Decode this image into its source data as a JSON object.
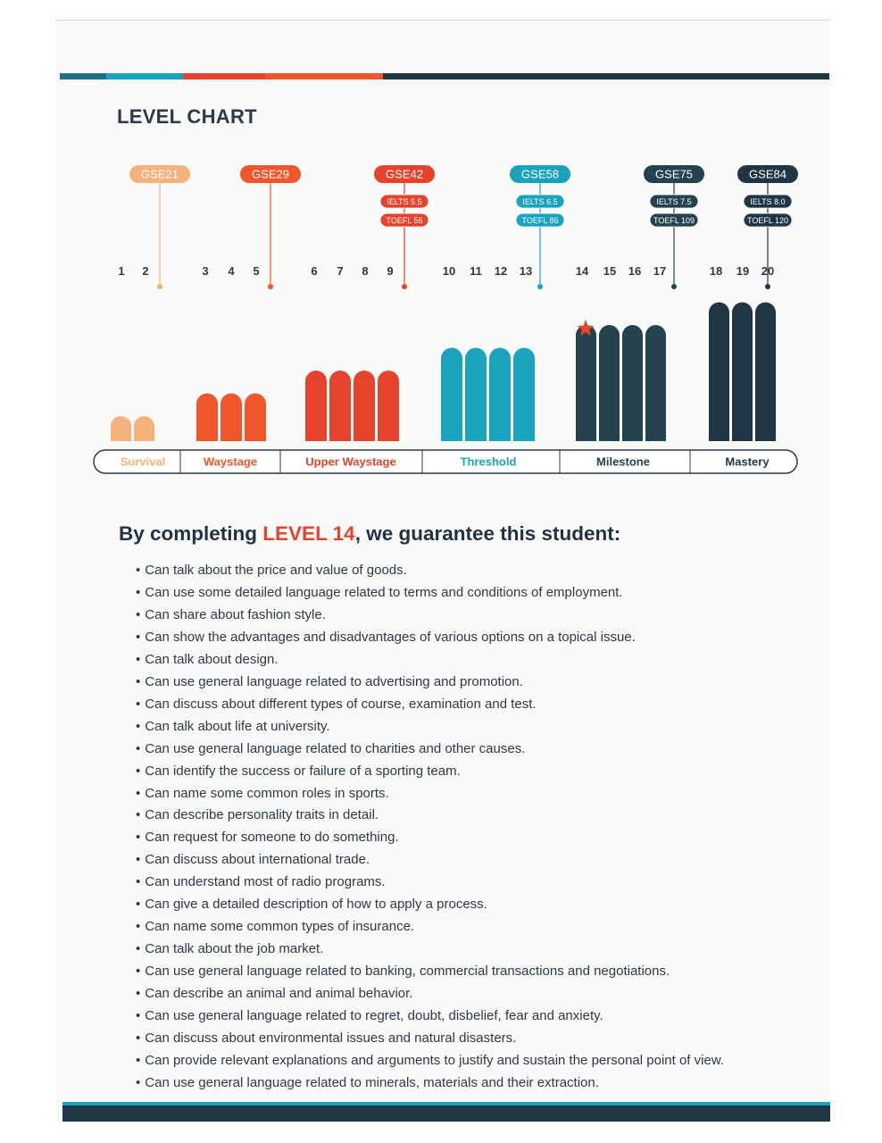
{
  "page_title": "LEVEL CHART",
  "colors": {
    "survival": "#f6b27d",
    "waystage": "#f0562c",
    "upper_waystage": "#e5432c",
    "threshold": "#1aa3bd",
    "milestone": "#25434f",
    "mastery": "#1f3745",
    "star": "#e5432c"
  },
  "chart_data": {
    "type": "bar",
    "levels": [
      "1",
      "2",
      "3",
      "4",
      "5",
      "6",
      "7",
      "8",
      "9",
      "10",
      "11",
      "12",
      "13",
      "14",
      "15",
      "16",
      "17",
      "18",
      "19",
      "20"
    ],
    "gse_markers": [
      {
        "label": "GSE21",
        "level": 2,
        "group": "survival",
        "tests": []
      },
      {
        "label": "GSE29",
        "level": 5,
        "group": "waystage",
        "tests": []
      },
      {
        "label": "GSE42",
        "level": 9,
        "group": "upper_waystage",
        "tests": [
          "IELTS 5.5",
          "TOEFL 56"
        ]
      },
      {
        "label": "GSE58",
        "level": 13,
        "group": "threshold",
        "tests": [
          "IELTS 6.5",
          "TOEFL 86"
        ]
      },
      {
        "label": "GSE75",
        "level": 17,
        "group": "milestone",
        "tests": [
          "IELTS 7.5",
          "TOEFL 109"
        ]
      },
      {
        "label": "GSE84",
        "level": 20,
        "group": "mastery",
        "tests": [
          "IELTS 8.0",
          "TOEFL 120"
        ]
      }
    ],
    "stages": [
      {
        "name": "Survival",
        "key": "survival",
        "bars": 2,
        "height": 1
      },
      {
        "name": "Waystage",
        "key": "waystage",
        "bars": 3,
        "height": 2
      },
      {
        "name": "Upper Waystage",
        "key": "upper_waystage",
        "bars": 4,
        "height": 3
      },
      {
        "name": "Threshold",
        "key": "threshold",
        "bars": 4,
        "height": 4
      },
      {
        "name": "Milestone",
        "key": "milestone",
        "bars": 4,
        "height": 5
      },
      {
        "name": "Mastery",
        "key": "mastery",
        "bars": 3,
        "height": 6
      }
    ],
    "highlight_level": 14
  },
  "guarantee": {
    "prefix": "By completing",
    "level_text": "LEVEL 14",
    "suffix": ", we guarantee this student:",
    "items": [
      "Can talk about the price and value of goods.",
      "Can use some detailed language related to terms and conditions of employment.",
      "Can share about fashion style.",
      "Can show the advantages and disadvantages of various options on a topical issue.",
      "Can talk about design.",
      "Can use general language related to advertising and promotion.",
      "Can discuss about different types of course, examination and test.",
      "Can talk about life at university.",
      "Can use general language related to charities and other causes.",
      "Can identify the success or failure of a sporting team.",
      "Can name some common roles in sports.",
      "Can describe personality traits in detail.",
      "Can request for someone to do something.",
      "Can discuss about international trade.",
      "Can understand most of radio programs.",
      "Can give a detailed description of how to apply a process.",
      "Can name some common types of insurance.",
      "Can talk about the job market.",
      "Can use general language related to banking, commercial transactions and negotiations.",
      "Can describe an animal and animal behavior.",
      "Can use general language related to regret, doubt, disbelief, fear and anxiety.",
      "Can discuss about environmental issues and natural disasters.",
      "Can provide relevant explanations and arguments to justify and sustain the personal point of view.",
      "Can use general language related to minerals, materials and their extraction."
    ]
  }
}
